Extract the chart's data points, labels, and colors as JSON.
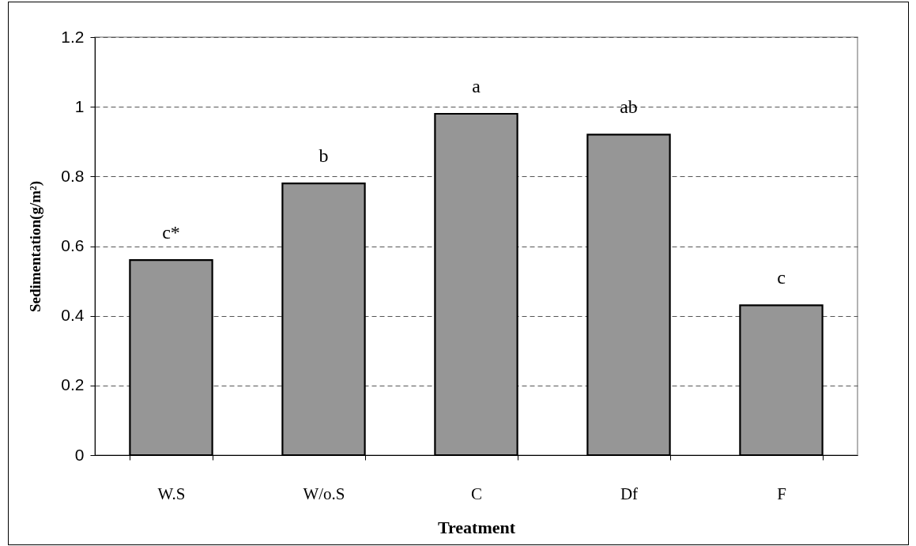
{
  "chart_data": {
    "type": "bar",
    "categories": [
      "W.S",
      "W/o.S",
      "C",
      "Df",
      "F"
    ],
    "values": [
      0.56,
      0.78,
      0.98,
      0.92,
      0.43
    ],
    "color": "#969696",
    "xlabel": "Treatment",
    "ylabel": "Sedimentation(g/m²)",
    "ylim": [
      0,
      1.2
    ],
    "yticks": [
      0,
      0.2,
      0.4,
      0.6,
      0.8,
      1,
      1.2
    ],
    "grid": "y",
    "annotations": [
      "c*",
      "b",
      "a",
      "ab",
      "c"
    ]
  }
}
